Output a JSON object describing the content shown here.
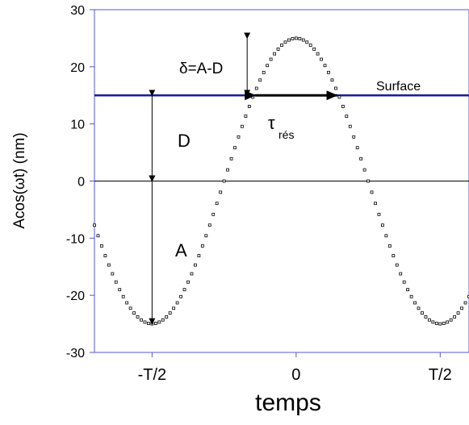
{
  "chart_data": {
    "type": "scatter",
    "xlabel": "temps",
    "ylabel": "Acos(ωt) (nm)",
    "ylim": [
      -30,
      30
    ],
    "xlim": [
      -0.7,
      0.6
    ],
    "period": 1,
    "y_ticks": [
      30,
      20,
      10,
      0,
      -10,
      -20,
      -30
    ],
    "x_ticks": [
      {
        "value": -0.5,
        "label": "-T/2"
      },
      {
        "value": 0,
        "label": "0"
      },
      {
        "value": 0.5,
        "label": "T/2"
      }
    ],
    "series": [
      {
        "type": "dotted-curve",
        "function": "A*cos(2*pi*t/T)",
        "amplitude": 25,
        "points_per_period": 80,
        "marker": "open-square"
      }
    ],
    "reference_lines": [
      {
        "y": 15,
        "label": "Surface",
        "color": "#1a1aa0"
      },
      {
        "y": 0,
        "label": "",
        "color": "#000000"
      }
    ],
    "annotations": {
      "delta_label": "δ=A-D",
      "D_label": "D",
      "A_label": "A",
      "tau_label": "τ",
      "tau_sub": "rés"
    },
    "grid": false
  }
}
